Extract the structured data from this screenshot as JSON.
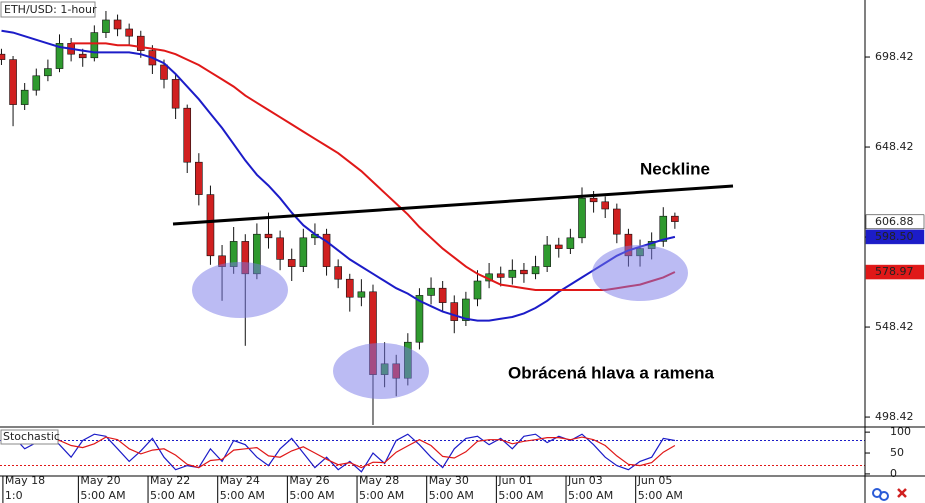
{
  "chart_data": [
    {
      "type": "candlestick",
      "title": "ETH/USD: 1-hour",
      "x": [
        0,
        8,
        16,
        24,
        32,
        40,
        48,
        56,
        64,
        72,
        80,
        88,
        96,
        104,
        112,
        120,
        128,
        136,
        144,
        152,
        160,
        168,
        176,
        184,
        192,
        200,
        208,
        216,
        224,
        232,
        240,
        248,
        256,
        264,
        272,
        280,
        288,
        296,
        304,
        312,
        320,
        328,
        336,
        344,
        352,
        360,
        368,
        376,
        384,
        392,
        400,
        408,
        416,
        424,
        432,
        440,
        448,
        456,
        464
      ],
      "open": [
        700,
        697,
        672,
        680,
        688,
        692,
        706,
        700,
        698,
        712,
        719,
        714,
        710,
        702,
        694,
        686,
        670,
        640,
        622,
        588,
        582,
        596,
        578,
        600,
        598,
        586,
        582,
        598,
        600,
        582,
        575,
        565,
        568,
        522,
        528,
        520,
        540,
        566,
        570,
        562,
        552,
        564,
        574,
        578,
        576,
        580,
        578,
        582,
        594,
        592,
        598,
        620,
        618,
        614,
        600,
        588,
        592,
        596,
        610
      ],
      "high": [
        703,
        699,
        684,
        692,
        697,
        711,
        709,
        703,
        716,
        724,
        722,
        717,
        713,
        705,
        697,
        689,
        672,
        645,
        627,
        594,
        604,
        600,
        606,
        612,
        602,
        592,
        603,
        606,
        603,
        586,
        578,
        575,
        572,
        540,
        533,
        545,
        570,
        576,
        574,
        566,
        568,
        580,
        584,
        582,
        586,
        584,
        588,
        599,
        598,
        603,
        626,
        624,
        621,
        617,
        603,
        597,
        601,
        615,
        612
      ],
      "low": [
        694,
        660,
        669,
        677,
        685,
        690,
        696,
        693,
        696,
        709,
        710,
        705,
        698,
        689,
        681,
        664,
        634,
        616,
        583,
        563,
        578,
        538,
        575,
        592,
        580,
        574,
        579,
        594,
        577,
        570,
        557,
        560,
        494,
        515,
        510,
        516,
        536,
        561,
        557,
        545,
        549,
        560,
        570,
        571,
        572,
        573,
        575,
        579,
        587,
        589,
        595,
        612,
        609,
        595,
        582,
        582,
        586,
        593,
        603
      ],
      "close": [
        697,
        672,
        680,
        688,
        692,
        706,
        700,
        698,
        712,
        719,
        714,
        710,
        702,
        694,
        686,
        670,
        640,
        622,
        588,
        582,
        596,
        578,
        600,
        598,
        586,
        582,
        598,
        600,
        582,
        575,
        565,
        568,
        522,
        528,
        520,
        540,
        566,
        570,
        562,
        552,
        564,
        574,
        578,
        576,
        580,
        578,
        582,
        594,
        592,
        598,
        620,
        618,
        614,
        600,
        588,
        592,
        596,
        610,
        607
      ],
      "up_color": "#2f9a2f",
      "down_color": "#d02020",
      "series": [
        {
          "color": "#1c1cc8",
          "values": [
            713,
            712,
            710,
            708,
            706,
            704,
            703,
            702,
            701,
            701,
            701,
            701,
            700,
            698,
            695,
            689,
            682,
            675,
            667,
            659,
            650,
            641,
            633,
            627,
            620,
            612,
            605,
            600,
            596,
            591,
            586,
            582,
            578,
            574,
            570,
            567,
            563,
            560,
            557,
            555,
            553,
            552,
            552,
            553,
            554,
            556,
            559,
            563,
            568,
            572,
            576,
            580,
            584,
            588,
            591,
            593,
            595,
            597,
            598.5
          ]
        },
        {
          "color": "#e01818",
          "values": [
            null,
            null,
            null,
            null,
            null,
            null,
            706,
            706,
            706,
            706,
            705,
            705,
            704,
            703,
            702,
            700,
            697,
            694,
            690,
            686,
            682,
            677,
            673,
            669,
            665,
            661,
            657,
            653,
            649,
            645,
            640,
            635,
            629,
            623,
            617,
            611,
            604,
            598,
            592,
            587,
            582,
            578,
            575,
            572,
            571,
            570,
            569,
            569,
            569,
            569,
            569,
            569,
            569,
            570,
            571,
            572,
            574,
            576,
            579
          ]
        }
      ],
      "xlim": [
        -1,
        595
      ],
      "xticks": [
        {
          "value": 1,
          "label": "May 18"
        },
        {
          "value": 53,
          "label": "May 20"
        },
        {
          "value": 101,
          "label": "May 22"
        },
        {
          "value": 149,
          "label": "May 24"
        },
        {
          "value": 197,
          "label": "May 26"
        },
        {
          "value": 245,
          "label": "May 28"
        },
        {
          "value": 293,
          "label": "May 30"
        },
        {
          "value": 341,
          "label": "Jun 01"
        },
        {
          "value": 389,
          "label": "Jun 03"
        },
        {
          "value": 437,
          "label": "Jun 05"
        }
      ],
      "xtick_sublabels": [
        "1:0",
        "5:00 AM",
        "5:00 AM",
        "5:00 AM",
        "5:00 AM",
        "5:00 AM",
        "5:00 AM",
        "5:00 AM",
        "5:00 AM",
        "5:00 AM"
      ],
      "ylim": [
        492.9,
        730.1
      ],
      "yticks": [
        498.42,
        548.42,
        598.42,
        648.42,
        698.42
      ],
      "price_tags": [
        {
          "value": 606.88,
          "label": "606.88",
          "color": "#ffffff"
        },
        {
          "value": 598.5,
          "label": "598.50",
          "color": "#1c1cc8"
        },
        {
          "value": 578.97,
          "label": "578.97",
          "color": "#e01818"
        }
      ],
      "annotations": [
        "Neckline",
        "Obrácená hlava a ramena"
      ]
    },
    {
      "type": "line",
      "title": "Stochastic",
      "x": [
        0,
        8,
        16,
        24,
        32,
        40,
        48,
        56,
        64,
        72,
        80,
        88,
        96,
        104,
        112,
        120,
        128,
        136,
        144,
        152,
        160,
        168,
        176,
        184,
        192,
        200,
        208,
        216,
        224,
        232,
        240,
        248,
        256,
        264,
        272,
        280,
        288,
        296,
        304,
        312,
        320,
        328,
        336,
        344,
        352,
        360,
        368,
        376,
        384,
        392,
        400,
        408,
        416,
        424,
        432,
        440,
        448,
        456,
        464
      ],
      "series": [
        {
          "color": "#1c1cc8",
          "values": [
            85,
            90,
            60,
            75,
            95,
            70,
            40,
            80,
            95,
            90,
            60,
            30,
            55,
            85,
            40,
            10,
            20,
            15,
            60,
            30,
            80,
            70,
            40,
            20,
            60,
            85,
            50,
            15,
            40,
            10,
            30,
            5,
            50,
            25,
            80,
            95,
            70,
            40,
            15,
            60,
            85,
            90,
            70,
            85,
            60,
            90,
            95,
            75,
            90,
            80,
            95,
            70,
            40,
            20,
            10,
            30,
            40,
            85,
            80
          ]
        },
        {
          "color": "#e01818",
          "values": [
            85,
            87,
            78,
            75,
            77,
            80,
            68,
            63,
            72,
            88,
            82,
            60,
            48,
            57,
            60,
            45,
            23,
            15,
            32,
            35,
            57,
            60,
            63,
            43,
            40,
            55,
            65,
            50,
            35,
            22,
            27,
            15,
            28,
            27,
            52,
            67,
            82,
            68,
            42,
            38,
            53,
            78,
            82,
            82,
            72,
            78,
            82,
            87,
            87,
            82,
            88,
            82,
            68,
            43,
            23,
            20,
            27,
            52,
            68
          ]
        }
      ],
      "levels": [
        {
          "value": 80,
          "color": "#1c1cc8"
        },
        {
          "value": 20,
          "color": "#e01818"
        }
      ],
      "xlim": [
        -1,
        595
      ],
      "ylim": [
        -5,
        107.5
      ],
      "yticks": [
        0,
        50,
        100
      ]
    }
  ]
}
